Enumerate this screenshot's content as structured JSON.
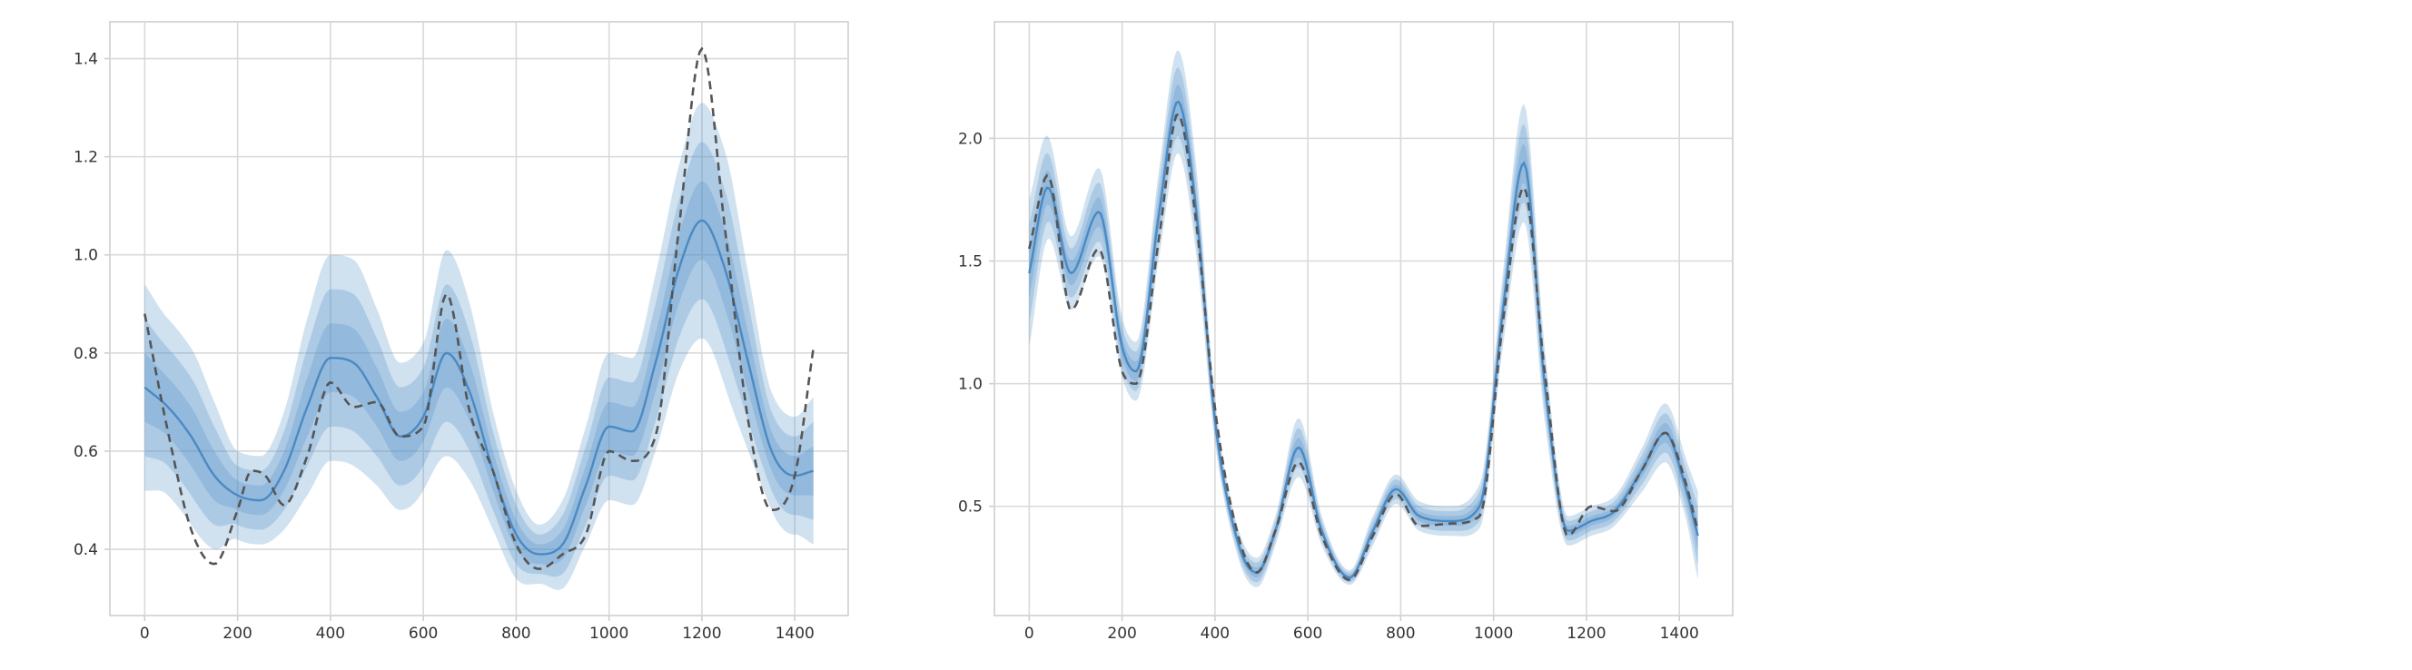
{
  "chart_data": [
    {
      "type": "line",
      "title": "",
      "xlabel": "",
      "ylabel": "",
      "xlim": [
        -75,
        1515
      ],
      "ylim": [
        0.265,
        1.475
      ],
      "xticks": [
        0,
        200,
        400,
        600,
        800,
        1000,
        1200,
        1400
      ],
      "yticks": [
        0.4,
        0.6,
        0.8,
        1.0,
        1.2,
        1.4
      ],
      "ytick_labels": [
        "0.4",
        "0.6",
        "0.8",
        "1.0",
        "1.2",
        "1.4"
      ],
      "grid": true,
      "colors": {
        "mean": "#4a8ac4",
        "band": "#4a8ac4",
        "truth": "#555555"
      },
      "series": [
        {
          "style": "solid-with-bands",
          "x": [
            0,
            50,
            100,
            150,
            200,
            250,
            300,
            350,
            400,
            450,
            500,
            550,
            600,
            650,
            700,
            750,
            800,
            850,
            900,
            950,
            1000,
            1050,
            1100,
            1150,
            1200,
            1250,
            1300,
            1350,
            1400,
            1440
          ],
          "y": [
            0.73,
            0.69,
            0.63,
            0.55,
            0.51,
            0.5,
            0.56,
            0.69,
            0.79,
            0.78,
            0.71,
            0.63,
            0.67,
            0.8,
            0.72,
            0.56,
            0.43,
            0.39,
            0.41,
            0.53,
            0.65,
            0.64,
            0.78,
            0.97,
            1.07,
            0.97,
            0.78,
            0.6,
            0.55,
            0.56
          ],
          "band_sd": [
            0.07,
            0.06,
            0.06,
            0.05,
            0.03,
            0.03,
            0.04,
            0.06,
            0.07,
            0.07,
            0.06,
            0.05,
            0.05,
            0.07,
            0.06,
            0.04,
            0.03,
            0.02,
            0.03,
            0.04,
            0.05,
            0.05,
            0.06,
            0.07,
            0.08,
            0.08,
            0.06,
            0.04,
            0.04,
            0.05
          ]
        },
        {
          "style": "dashed",
          "x": [
            0,
            50,
            100,
            150,
            200,
            230,
            260,
            300,
            350,
            400,
            450,
            500,
            550,
            600,
            650,
            700,
            750,
            800,
            850,
            900,
            950,
            1000,
            1050,
            1100,
            1150,
            1200,
            1250,
            1300,
            1350,
            1400,
            1440
          ],
          "y": [
            0.88,
            0.64,
            0.44,
            0.37,
            0.48,
            0.56,
            0.55,
            0.49,
            0.59,
            0.74,
            0.69,
            0.7,
            0.63,
            0.65,
            0.92,
            0.68,
            0.56,
            0.41,
            0.36,
            0.39,
            0.43,
            0.6,
            0.58,
            0.63,
            1.05,
            1.42,
            1.05,
            0.66,
            0.48,
            0.55,
            0.81
          ]
        }
      ]
    },
    {
      "type": "line",
      "title": "",
      "xlabel": "",
      "ylabel": "",
      "xlim": [
        -75,
        1515
      ],
      "ylim": [
        0.055,
        2.475
      ],
      "xticks": [
        0,
        200,
        400,
        600,
        800,
        1000,
        1200,
        1400
      ],
      "yticks": [
        0.5,
        1.0,
        1.5,
        2.0
      ],
      "ytick_labels": [
        "0.5",
        "1.0",
        "1.5",
        "2.0"
      ],
      "grid": true,
      "colors": {
        "mean": "#4a8ac4",
        "band": "#4a8ac4",
        "truth": "#555555"
      },
      "series": [
        {
          "style": "solid-with-bands",
          "x": [
            0,
            40,
            90,
            150,
            200,
            230,
            280,
            320,
            360,
            400,
            450,
            490,
            530,
            580,
            630,
            690,
            740,
            790,
            840,
            910,
            970,
            1020,
            1065,
            1110,
            1160,
            1210,
            1260,
            1320,
            1370,
            1410,
            1440
          ],
          "y": [
            1.45,
            1.8,
            1.45,
            1.7,
            1.15,
            1.05,
            1.7,
            2.15,
            1.7,
            0.85,
            0.35,
            0.23,
            0.4,
            0.74,
            0.4,
            0.21,
            0.4,
            0.57,
            0.46,
            0.44,
            0.5,
            1.3,
            1.9,
            1.0,
            0.4,
            0.44,
            0.48,
            0.65,
            0.8,
            0.6,
            0.38
          ],
          "band_sd": [
            0.1,
            0.07,
            0.05,
            0.06,
            0.04,
            0.04,
            0.06,
            0.07,
            0.06,
            0.03,
            0.02,
            0.02,
            0.02,
            0.04,
            0.02,
            0.01,
            0.02,
            0.02,
            0.02,
            0.02,
            0.03,
            0.05,
            0.08,
            0.05,
            0.02,
            0.02,
            0.02,
            0.03,
            0.04,
            0.04,
            0.06
          ]
        },
        {
          "style": "dashed",
          "x": [
            0,
            40,
            90,
            150,
            200,
            230,
            280,
            320,
            360,
            400,
            450,
            490,
            530,
            580,
            630,
            690,
            740,
            790,
            840,
            910,
            970,
            1020,
            1065,
            1110,
            1160,
            1210,
            1260,
            1320,
            1370,
            1410,
            1440
          ],
          "y": [
            1.55,
            1.85,
            1.3,
            1.55,
            1.05,
            1.0,
            1.6,
            2.1,
            1.65,
            0.9,
            0.38,
            0.23,
            0.4,
            0.68,
            0.38,
            0.2,
            0.38,
            0.55,
            0.42,
            0.43,
            0.46,
            1.25,
            1.8,
            1.05,
            0.38,
            0.5,
            0.48,
            0.65,
            0.8,
            0.62,
            0.4
          ]
        }
      ]
    }
  ]
}
